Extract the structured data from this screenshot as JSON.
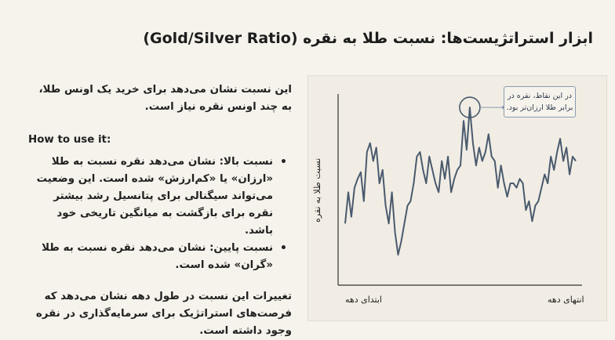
{
  "title": "ابزار استراتژیست‌ها: نسبت طلا به نقره (Gold/Silver Ratio)",
  "intro": "این نسبت نشان می‌دهد برای خرید یک اونس طلا، به چند اونس نقره نیاز است.",
  "how_to_heading": "How to use it:",
  "bullets": [
    "نسبت بالا: نشان می‌دهد نقره نسبت به طلا «ارزان» یا «کم‌ارزش» شده است. این وضعیت می‌تواند سیگنالی برای پتانسیل رشد بیشتر نقره برای بازگشت به میانگین تاریخی خود باشد.",
    "نسبت پایین: نشان می‌دهد نقره نسبت به طلا «گران» شده است."
  ],
  "conclusion": "تغییرات این نسبت در طول دهه نشان می‌دهد که فرصت‌های استراتژیک برای سرمایه‌گذاری در نقره وجود داشته است.",
  "chart": {
    "ylabel": "نسبت طلا به نقره",
    "x_start_label": "ابتدای دهه",
    "x_end_label": "انتهای دهه",
    "annotation": "در این نقاط، نقره در برابر طلا ارزان‌تر بود.",
    "line_color": "#4a5a6e",
    "axis_color": "#333333"
  },
  "chart_data": {
    "type": "line",
    "title": "",
    "xlabel": "",
    "ylabel": "نسبت طلا به نقره",
    "x_range_labels": [
      "ابتدای دهه",
      "انتهای دهه"
    ],
    "values": [
      52,
      66,
      55,
      68,
      72,
      75,
      62,
      84,
      88,
      80,
      86,
      70,
      76,
      60,
      52,
      66,
      48,
      38,
      44,
      52,
      60,
      62,
      70,
      82,
      84,
      76,
      70,
      82,
      76,
      70,
      66,
      80,
      72,
      82,
      66,
      72,
      76,
      78,
      98,
      85,
      104,
      88,
      78,
      86,
      80,
      84,
      92,
      82,
      80,
      68,
      78,
      70,
      64,
      70,
      70,
      68,
      72,
      70,
      58,
      62,
      53,
      60,
      62,
      68,
      74,
      70,
      82,
      76,
      84,
      90,
      80,
      86,
      74,
      82,
      80
    ],
    "ylim": [
      30,
      110
    ],
    "grid": false,
    "highlight_index": 40
  }
}
